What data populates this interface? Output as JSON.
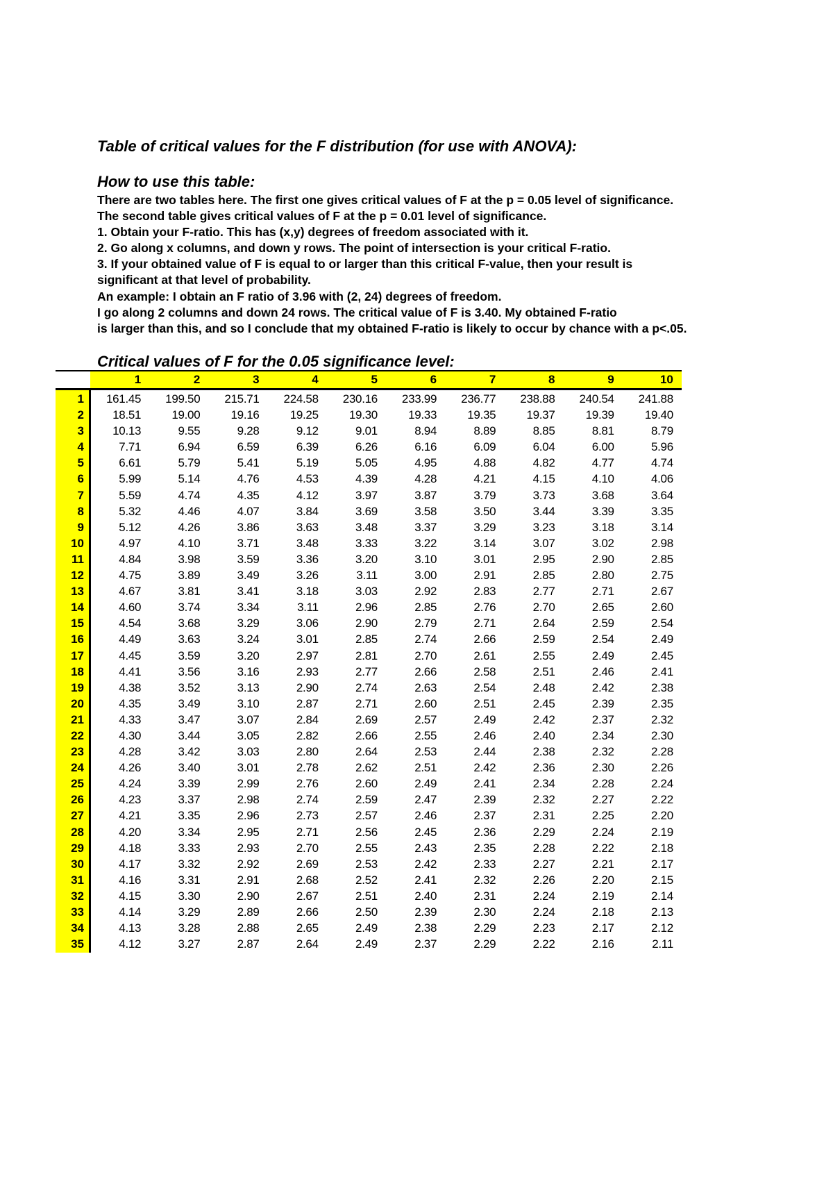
{
  "title": "Table of critical values for the F distribution (for use with ANOVA):",
  "howto_heading": "How to use this table:",
  "instructions": [
    "There are two tables here. The first one gives critical values of F at the p = 0.05 level of significance.",
    "The second table gives critical values of F at the p = 0.01 level of significance.",
    "1. Obtain your F-ratio. This has (x,y) degrees of freedom associated with it.",
    "2. Go along x columns, and down y rows. The point of intersection is your critical F-ratio.",
    "3. If your obtained value of F is equal to or larger than this critical F-value, then your result is",
    "significant at that level of probability.",
    "An example: I obtain an F ratio of 3.96 with (2, 24) degrees of freedom.",
    "I go along 2 columns and down 24 rows. The critical value of F is 3.40. My obtained F-ratio",
    "is larger than this, and so I conclude that my obtained F-ratio is likely to occur by chance with a p<.05."
  ],
  "table": {
    "title": "Critical values of F for the 0.05 significance level:",
    "highlight_color": "#ffff00",
    "columns": [
      "1",
      "2",
      "3",
      "4",
      "5",
      "6",
      "7",
      "8",
      "9",
      "10"
    ],
    "rows": [
      {
        "df": "1",
        "values": [
          "161.45",
          "199.50",
          "215.71",
          "224.58",
          "230.16",
          "233.99",
          "236.77",
          "238.88",
          "240.54",
          "241.88"
        ]
      },
      {
        "df": "2",
        "values": [
          "18.51",
          "19.00",
          "19.16",
          "19.25",
          "19.30",
          "19.33",
          "19.35",
          "19.37",
          "19.39",
          "19.40"
        ]
      },
      {
        "df": "3",
        "values": [
          "10.13",
          "9.55",
          "9.28",
          "9.12",
          "9.01",
          "8.94",
          "8.89",
          "8.85",
          "8.81",
          "8.79"
        ]
      },
      {
        "df": "4",
        "values": [
          "7.71",
          "6.94",
          "6.59",
          "6.39",
          "6.26",
          "6.16",
          "6.09",
          "6.04",
          "6.00",
          "5.96"
        ]
      },
      {
        "df": "5",
        "values": [
          "6.61",
          "5.79",
          "5.41",
          "5.19",
          "5.05",
          "4.95",
          "4.88",
          "4.82",
          "4.77",
          "4.74"
        ]
      },
      {
        "df": "6",
        "values": [
          "5.99",
          "5.14",
          "4.76",
          "4.53",
          "4.39",
          "4.28",
          "4.21",
          "4.15",
          "4.10",
          "4.06"
        ]
      },
      {
        "df": "7",
        "values": [
          "5.59",
          "4.74",
          "4.35",
          "4.12",
          "3.97",
          "3.87",
          "3.79",
          "3.73",
          "3.68",
          "3.64"
        ]
      },
      {
        "df": "8",
        "values": [
          "5.32",
          "4.46",
          "4.07",
          "3.84",
          "3.69",
          "3.58",
          "3.50",
          "3.44",
          "3.39",
          "3.35"
        ]
      },
      {
        "df": "9",
        "values": [
          "5.12",
          "4.26",
          "3.86",
          "3.63",
          "3.48",
          "3.37",
          "3.29",
          "3.23",
          "3.18",
          "3.14"
        ]
      },
      {
        "df": "10",
        "values": [
          "4.97",
          "4.10",
          "3.71",
          "3.48",
          "3.33",
          "3.22",
          "3.14",
          "3.07",
          "3.02",
          "2.98"
        ]
      },
      {
        "df": "11",
        "values": [
          "4.84",
          "3.98",
          "3.59",
          "3.36",
          "3.20",
          "3.10",
          "3.01",
          "2.95",
          "2.90",
          "2.85"
        ]
      },
      {
        "df": "12",
        "values": [
          "4.75",
          "3.89",
          "3.49",
          "3.26",
          "3.11",
          "3.00",
          "2.91",
          "2.85",
          "2.80",
          "2.75"
        ]
      },
      {
        "df": "13",
        "values": [
          "4.67",
          "3.81",
          "3.41",
          "3.18",
          "3.03",
          "2.92",
          "2.83",
          "2.77",
          "2.71",
          "2.67"
        ]
      },
      {
        "df": "14",
        "values": [
          "4.60",
          "3.74",
          "3.34",
          "3.11",
          "2.96",
          "2.85",
          "2.76",
          "2.70",
          "2.65",
          "2.60"
        ]
      },
      {
        "df": "15",
        "values": [
          "4.54",
          "3.68",
          "3.29",
          "3.06",
          "2.90",
          "2.79",
          "2.71",
          "2.64",
          "2.59",
          "2.54"
        ]
      },
      {
        "df": "16",
        "values": [
          "4.49",
          "3.63",
          "3.24",
          "3.01",
          "2.85",
          "2.74",
          "2.66",
          "2.59",
          "2.54",
          "2.49"
        ]
      },
      {
        "df": "17",
        "values": [
          "4.45",
          "3.59",
          "3.20",
          "2.97",
          "2.81",
          "2.70",
          "2.61",
          "2.55",
          "2.49",
          "2.45"
        ]
      },
      {
        "df": "18",
        "values": [
          "4.41",
          "3.56",
          "3.16",
          "2.93",
          "2.77",
          "2.66",
          "2.58",
          "2.51",
          "2.46",
          "2.41"
        ]
      },
      {
        "df": "19",
        "values": [
          "4.38",
          "3.52",
          "3.13",
          "2.90",
          "2.74",
          "2.63",
          "2.54",
          "2.48",
          "2.42",
          "2.38"
        ]
      },
      {
        "df": "20",
        "values": [
          "4.35",
          "3.49",
          "3.10",
          "2.87",
          "2.71",
          "2.60",
          "2.51",
          "2.45",
          "2.39",
          "2.35"
        ]
      },
      {
        "df": "21",
        "values": [
          "4.33",
          "3.47",
          "3.07",
          "2.84",
          "2.69",
          "2.57",
          "2.49",
          "2.42",
          "2.37",
          "2.32"
        ]
      },
      {
        "df": "22",
        "values": [
          "4.30",
          "3.44",
          "3.05",
          "2.82",
          "2.66",
          "2.55",
          "2.46",
          "2.40",
          "2.34",
          "2.30"
        ]
      },
      {
        "df": "23",
        "values": [
          "4.28",
          "3.42",
          "3.03",
          "2.80",
          "2.64",
          "2.53",
          "2.44",
          "2.38",
          "2.32",
          "2.28"
        ]
      },
      {
        "df": "24",
        "values": [
          "4.26",
          "3.40",
          "3.01",
          "2.78",
          "2.62",
          "2.51",
          "2.42",
          "2.36",
          "2.30",
          "2.26"
        ]
      },
      {
        "df": "25",
        "values": [
          "4.24",
          "3.39",
          "2.99",
          "2.76",
          "2.60",
          "2.49",
          "2.41",
          "2.34",
          "2.28",
          "2.24"
        ]
      },
      {
        "df": "26",
        "values": [
          "4.23",
          "3.37",
          "2.98",
          "2.74",
          "2.59",
          "2.47",
          "2.39",
          "2.32",
          "2.27",
          "2.22"
        ]
      },
      {
        "df": "27",
        "values": [
          "4.21",
          "3.35",
          "2.96",
          "2.73",
          "2.57",
          "2.46",
          "2.37",
          "2.31",
          "2.25",
          "2.20"
        ]
      },
      {
        "df": "28",
        "values": [
          "4.20",
          "3.34",
          "2.95",
          "2.71",
          "2.56",
          "2.45",
          "2.36",
          "2.29",
          "2.24",
          "2.19"
        ]
      },
      {
        "df": "29",
        "values": [
          "4.18",
          "3.33",
          "2.93",
          "2.70",
          "2.55",
          "2.43",
          "2.35",
          "2.28",
          "2.22",
          "2.18"
        ]
      },
      {
        "df": "30",
        "values": [
          "4.17",
          "3.32",
          "2.92",
          "2.69",
          "2.53",
          "2.42",
          "2.33",
          "2.27",
          "2.21",
          "2.17"
        ]
      },
      {
        "df": "31",
        "values": [
          "4.16",
          "3.31",
          "2.91",
          "2.68",
          "2.52",
          "2.41",
          "2.32",
          "2.26",
          "2.20",
          "2.15"
        ]
      },
      {
        "df": "32",
        "values": [
          "4.15",
          "3.30",
          "2.90",
          "2.67",
          "2.51",
          "2.40",
          "2.31",
          "2.24",
          "2.19",
          "2.14"
        ]
      },
      {
        "df": "33",
        "values": [
          "4.14",
          "3.29",
          "2.89",
          "2.66",
          "2.50",
          "2.39",
          "2.30",
          "2.24",
          "2.18",
          "2.13"
        ]
      },
      {
        "df": "34",
        "values": [
          "4.13",
          "3.28",
          "2.88",
          "2.65",
          "2.49",
          "2.38",
          "2.29",
          "2.23",
          "2.17",
          "2.12"
        ]
      },
      {
        "df": "35",
        "values": [
          "4.12",
          "3.27",
          "2.87",
          "2.64",
          "2.49",
          "2.37",
          "2.29",
          "2.22",
          "2.16",
          "2.11"
        ]
      }
    ]
  }
}
